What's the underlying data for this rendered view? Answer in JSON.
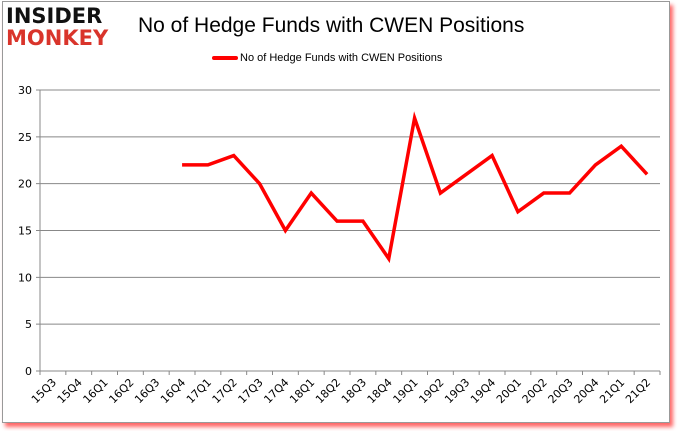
{
  "logo": {
    "line1": "INSIDER",
    "line2": "MONKEY"
  },
  "colors": {
    "series": "#ff0000",
    "grid": "#888888",
    "logo_red": "#d9342b"
  },
  "chart_data": {
    "type": "line",
    "title": "No of Hedge Funds with CWEN Positions",
    "xlabel": "",
    "ylabel": "",
    "ylim": [
      0,
      30
    ],
    "yticks": [
      0,
      5,
      10,
      15,
      20,
      25,
      30
    ],
    "grid": true,
    "legend_position": "top",
    "categories": [
      "15Q3",
      "15Q4",
      "16Q1",
      "16Q2",
      "16Q3",
      "16Q4",
      "17Q1",
      "17Q2",
      "17Q3",
      "17Q4",
      "18Q1",
      "18Q2",
      "18Q3",
      "18Q4",
      "19Q1",
      "19Q2",
      "19Q3",
      "19Q4",
      "20Q1",
      "20Q2",
      "20Q3",
      "20Q4",
      "21Q1",
      "21Q2"
    ],
    "series": [
      {
        "name": "No of Hedge Funds with CWEN Positions",
        "values": [
          null,
          null,
          null,
          null,
          null,
          22,
          22,
          23,
          20,
          15,
          19,
          16,
          16,
          12,
          27,
          19,
          21,
          23,
          17,
          19,
          19,
          22,
          24,
          21
        ]
      }
    ]
  }
}
